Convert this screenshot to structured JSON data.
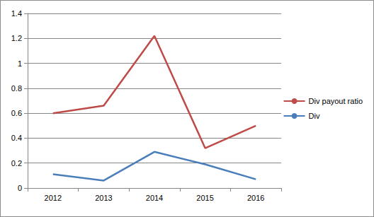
{
  "chart_data": {
    "type": "line",
    "categories": [
      "2012",
      "2013",
      "2014",
      "2015",
      "2016"
    ],
    "series": [
      {
        "name": "Div payout ratio",
        "color": "#be4b48",
        "values": [
          0.6,
          0.66,
          1.22,
          0.32,
          0.5
        ]
      },
      {
        "name": "Div",
        "color": "#4a7ebb",
        "values": [
          0.11,
          0.06,
          0.29,
          0.19,
          0.07
        ]
      }
    ],
    "ylim": [
      0,
      1.4
    ],
    "yticks": [
      0,
      0.2,
      0.4,
      0.6,
      0.8,
      1,
      1.2,
      1.4
    ],
    "grid": true,
    "legend": "right"
  }
}
